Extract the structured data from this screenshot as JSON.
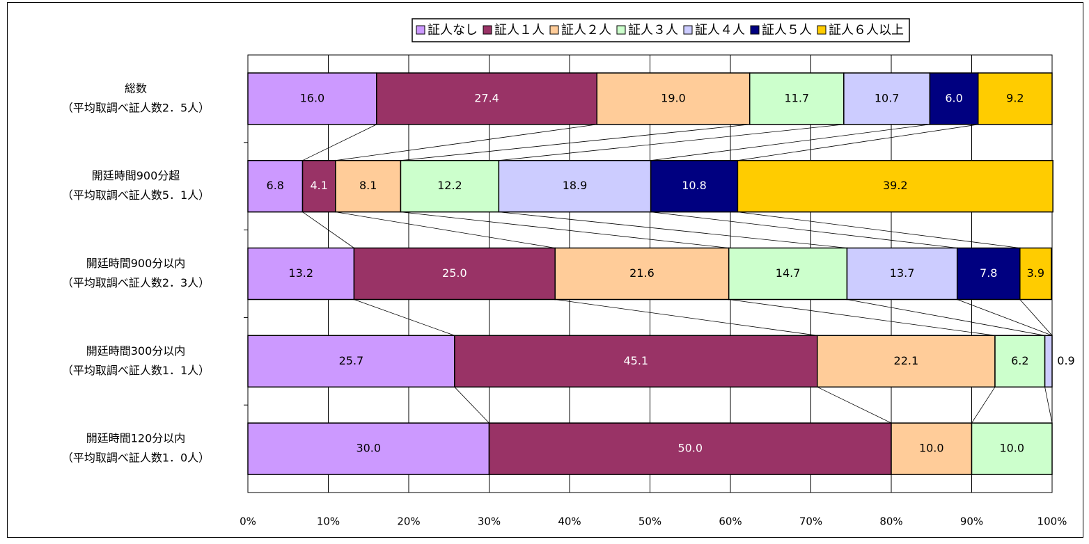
{
  "chart_data": {
    "type": "stacked_bar_horizontal",
    "categories": [
      [
        "総数",
        "（平均取調べ証人数2．5人）"
      ],
      [
        "開廷時間900分超",
        "（平均取調べ証人数5．1人）"
      ],
      [
        "開廷時間900分以内",
        "（平均取調べ証人数2．3人）"
      ],
      [
        "開廷時間300分以内",
        "（平均取調べ証人数1．1人）"
      ],
      [
        "開廷時間120分以内",
        "（平均取調べ証人数1．0人）"
      ]
    ],
    "series": [
      {
        "name": "証人なし",
        "color": "#cc99ff",
        "values": [
          16.0,
          6.8,
          13.2,
          25.7,
          30.0
        ],
        "value_labels": [
          "16.0",
          "6.8",
          "13.2",
          "25.7",
          "30.0"
        ]
      },
      {
        "name": "証人１人",
        "color": "#993366",
        "values": [
          27.4,
          4.1,
          25.0,
          45.1,
          50.0
        ],
        "value_labels": [
          "27.4",
          "4.1",
          "25.0",
          "45.1",
          "50.0"
        ]
      },
      {
        "name": "証人２人",
        "color": "#ffcc99",
        "values": [
          19.0,
          8.1,
          21.6,
          22.1,
          10.0
        ],
        "value_labels": [
          "19.0",
          "8.1",
          "21.6",
          "22.1",
          "10.0"
        ]
      },
      {
        "name": "証人３人",
        "color": "#ccffcc",
        "values": [
          11.7,
          12.2,
          14.7,
          6.2,
          10.0
        ],
        "value_labels": [
          "11.7",
          "12.2",
          "14.7",
          "6.2",
          "10.0"
        ]
      },
      {
        "name": "証人４人",
        "color": "#ccccff",
        "values": [
          10.7,
          18.9,
          13.7,
          0.9,
          null
        ],
        "value_labels": [
          "10.7",
          "18.9",
          "13.7",
          "0.9",
          null
        ]
      },
      {
        "name": "証人５人",
        "color": "#000080",
        "values": [
          6.0,
          10.8,
          7.8,
          null,
          null
        ],
        "value_labels": [
          "6.0",
          "10.8",
          "7.8",
          null,
          null
        ]
      },
      {
        "name": "証人６人以上",
        "color": "#ffcc00",
        "values": [
          9.2,
          39.2,
          3.9,
          null,
          null
        ],
        "value_labels": [
          "9.2",
          "39.2",
          "3.9",
          null,
          null
        ]
      }
    ],
    "xlim": [
      0,
      100
    ],
    "xticks": [
      {
        "value": 0,
        "label": "0%"
      },
      {
        "value": 10,
        "label": "10%"
      },
      {
        "value": 20,
        "label": "20%"
      },
      {
        "value": 30,
        "label": "30%"
      },
      {
        "value": 40,
        "label": "40%"
      },
      {
        "value": 50,
        "label": "50%"
      },
      {
        "value": 60,
        "label": "60%"
      },
      {
        "value": 70,
        "label": "70%"
      },
      {
        "value": 80,
        "label": "80%"
      },
      {
        "value": 90,
        "label": "90%"
      },
      {
        "value": 100,
        "label": "100%"
      }
    ],
    "grid": true,
    "legend": "top"
  }
}
